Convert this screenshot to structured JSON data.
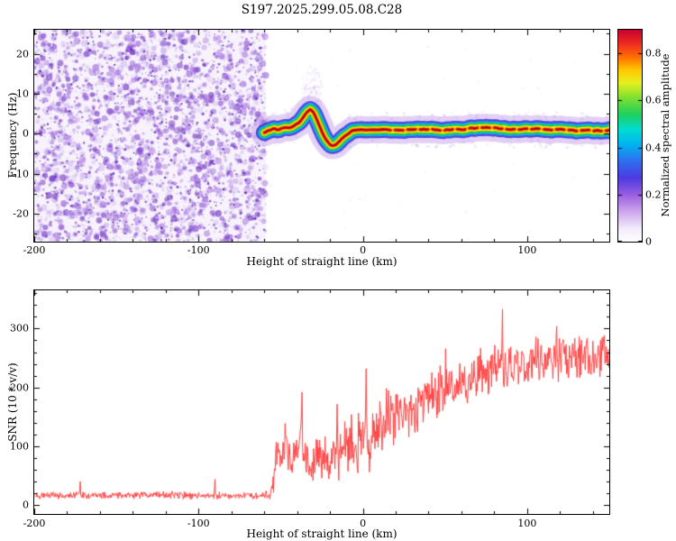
{
  "title": "S197.2025.299.05.08.C28",
  "chart_data": [
    {
      "type": "heatmap",
      "name": "dynamic-spectrum",
      "xlabel": "Height of straight line (km)",
      "ylabel": "Frequency (Hz)",
      "xlim": [
        -200,
        150
      ],
      "ylim": [
        -27,
        26
      ],
      "xticks": [
        -200,
        -100,
        0,
        100
      ],
      "yticks": [
        -20,
        -10,
        0,
        10,
        20
      ],
      "xminor_step": 20,
      "yminor_step": 5,
      "noise_region": {
        "x_min": -200,
        "x_max": -59,
        "blob_count": 2600,
        "speck_count": 700,
        "colors": [
          "#8b4fd8",
          "#7a3cc8",
          "#9a63e0",
          "#6b2fc0",
          "#b07fe8"
        ],
        "base_tint": "#f7f2fc"
      },
      "scatter_noise": {
        "band_dot_count": 340,
        "speck_count": 80,
        "plume": {
          "cx": -31,
          "cy": 10,
          "rx": 6.5,
          "ry": 7,
          "count": 140
        }
      },
      "trace_center": [
        [
          -60,
          0.3
        ],
        [
          -57,
          0.9
        ],
        [
          -54,
          1.2
        ],
        [
          -51,
          1.0
        ],
        [
          -48,
          1.5
        ],
        [
          -45,
          1.6
        ],
        [
          -42,
          2.0
        ],
        [
          -40,
          2.4
        ],
        [
          -38,
          3.2
        ],
        [
          -36,
          4.4
        ],
        [
          -34,
          5.6
        ],
        [
          -32,
          6.2
        ],
        [
          -30,
          5.4
        ],
        [
          -28,
          3.6
        ],
        [
          -26,
          1.6
        ],
        [
          -24,
          -0.4
        ],
        [
          -22,
          -1.8
        ],
        [
          -20,
          -2.7
        ],
        [
          -18,
          -3.0
        ],
        [
          -16,
          -2.6
        ],
        [
          -14,
          -1.8
        ],
        [
          -12,
          -1.0
        ],
        [
          -10,
          -0.3
        ],
        [
          -8,
          0.3
        ],
        [
          -6,
          0.8
        ],
        [
          -3,
          1.0
        ],
        [
          0,
          1.0
        ],
        [
          5,
          0.9
        ],
        [
          10,
          1.0
        ],
        [
          15,
          1.1
        ],
        [
          20,
          1.0
        ],
        [
          25,
          0.9
        ],
        [
          30,
          1.0
        ],
        [
          35,
          1.1
        ],
        [
          40,
          1.2
        ],
        [
          45,
          1.0
        ],
        [
          50,
          0.9
        ],
        [
          55,
          1.0
        ],
        [
          60,
          1.1
        ],
        [
          65,
          1.3
        ],
        [
          70,
          1.5
        ],
        [
          75,
          1.6
        ],
        [
          80,
          1.4
        ],
        [
          85,
          1.2
        ],
        [
          90,
          1.1
        ],
        [
          95,
          1.0
        ],
        [
          100,
          1.1
        ],
        [
          105,
          1.2
        ],
        [
          110,
          1.1
        ],
        [
          115,
          1.0
        ],
        [
          120,
          1.1
        ],
        [
          125,
          0.9
        ],
        [
          130,
          0.8
        ],
        [
          135,
          0.9
        ],
        [
          140,
          0.8
        ],
        [
          145,
          0.8
        ],
        [
          150,
          0.8
        ]
      ],
      "trace_jitter_hz": 0.22,
      "core_dash_from_km": 12,
      "trace_layers": [
        {
          "color": "#c8a2ea",
          "alpha": 0.5,
          "half_width_hz": 3.4,
          "core": false
        },
        {
          "color": "#2b2bd8",
          "alpha": 0.8,
          "half_width_hz": 2.1,
          "core": false
        },
        {
          "color": "#00c4e8",
          "alpha": 0.9,
          "half_width_hz": 1.55,
          "core": false
        },
        {
          "color": "#22c832",
          "alpha": 0.95,
          "half_width_hz": 1.15,
          "core": false
        },
        {
          "color": "#f6ee00",
          "alpha": 1,
          "half_width_hz": 0.82,
          "core": false
        },
        {
          "color": "#ff9000",
          "alpha": 1,
          "half_width_hz": 0.55,
          "core": true
        },
        {
          "color": "#e01818",
          "alpha": 1,
          "half_width_hz": 0.33,
          "core": true
        },
        {
          "color": "#a00010",
          "alpha": 1,
          "half_width_hz": 0.15,
          "core": true
        }
      ],
      "colorbar": {
        "label": "Normalized spectral amplitude",
        "range": [
          0,
          0.9
        ],
        "ticks": [
          {
            "v": 0.8,
            "label": "0.8"
          },
          {
            "v": 0.6,
            "label": "0.6"
          },
          {
            "v": 0.4,
            "label": "0.4"
          },
          {
            "v": 0.2,
            "label": "0.2"
          },
          {
            "v": 0,
            "label": "0"
          }
        ],
        "stops": [
          [
            0,
            "#ffffff"
          ],
          [
            0.06,
            "#f3ecfb"
          ],
          [
            0.14,
            "#cfa8ec"
          ],
          [
            0.22,
            "#9b5fe0"
          ],
          [
            0.3,
            "#4d3ae0"
          ],
          [
            0.38,
            "#2f6ff0"
          ],
          [
            0.46,
            "#00b4f0"
          ],
          [
            0.53,
            "#00ddd0"
          ],
          [
            0.6,
            "#20d060"
          ],
          [
            0.68,
            "#7fe030"
          ],
          [
            0.75,
            "#e8f020"
          ],
          [
            0.81,
            "#ffc800"
          ],
          [
            0.87,
            "#ff7000"
          ],
          [
            0.93,
            "#f03020"
          ],
          [
            1,
            "#c80030"
          ]
        ]
      }
    },
    {
      "type": "line",
      "name": "snr-profile",
      "xlabel": "Height of straight line (km)",
      "ylabel": "SNR (10 * v/v)",
      "xlim": [
        -200,
        150
      ],
      "ylim": [
        -15,
        365
      ],
      "xticks": [
        -200,
        -100,
        0,
        100
      ],
      "yticks": [
        0,
        100,
        200,
        300
      ],
      "xminor_step": 20,
      "yminor_step": 20,
      "color": "#ff4343",
      "samples_per_km": 3,
      "mean_profile": [
        [
          -200,
          17
        ],
        [
          -120,
          17
        ],
        [
          -70,
          16
        ],
        [
          -60,
          16
        ],
        [
          -56,
          20
        ],
        [
          -54,
          55
        ],
        [
          -52,
          88
        ],
        [
          -50,
          80
        ],
        [
          -47,
          105
        ],
        [
          -44,
          76
        ],
        [
          -41,
          95
        ],
        [
          -38,
          115
        ],
        [
          -36,
          90
        ],
        [
          -33,
          80
        ],
        [
          -30,
          70
        ],
        [
          -27,
          88
        ],
        [
          -24,
          84
        ],
        [
          -21,
          74
        ],
        [
          -18,
          86
        ],
        [
          -15,
          80
        ],
        [
          -12,
          90
        ],
        [
          -9,
          98
        ],
        [
          -6,
          104
        ],
        [
          -3,
          112
        ],
        [
          0,
          122
        ],
        [
          3,
          112
        ],
        [
          6,
          118
        ],
        [
          10,
          132
        ],
        [
          14,
          142
        ],
        [
          18,
          148
        ],
        [
          24,
          158
        ],
        [
          30,
          168
        ],
        [
          36,
          177
        ],
        [
          42,
          186
        ],
        [
          50,
          196
        ],
        [
          58,
          206
        ],
        [
          66,
          214
        ],
        [
          75,
          224
        ],
        [
          85,
          232
        ],
        [
          95,
          240
        ],
        [
          105,
          244
        ],
        [
          115,
          248
        ],
        [
          125,
          252
        ],
        [
          135,
          255
        ],
        [
          145,
          258
        ],
        [
          150,
          258
        ]
      ],
      "noise_profile": [
        [
          -200,
          6
        ],
        [
          -60,
          6
        ],
        [
          -56,
          10
        ],
        [
          -54,
          32
        ],
        [
          -50,
          40
        ],
        [
          -40,
          42
        ],
        [
          -30,
          40
        ],
        [
          -20,
          42
        ],
        [
          -10,
          48
        ],
        [
          -2,
          55
        ],
        [
          4,
          60
        ],
        [
          10,
          52
        ],
        [
          20,
          48
        ],
        [
          30,
          46
        ],
        [
          45,
          42
        ],
        [
          60,
          40
        ],
        [
          80,
          46
        ],
        [
          100,
          40
        ],
        [
          120,
          38
        ],
        [
          150,
          40
        ]
      ],
      "spikes": [
        [
          -37,
          192
        ],
        [
          2,
          232
        ],
        [
          85,
          333
        ],
        [
          118,
          304
        ],
        [
          -90,
          44
        ],
        [
          -172,
          40
        ]
      ]
    }
  ]
}
